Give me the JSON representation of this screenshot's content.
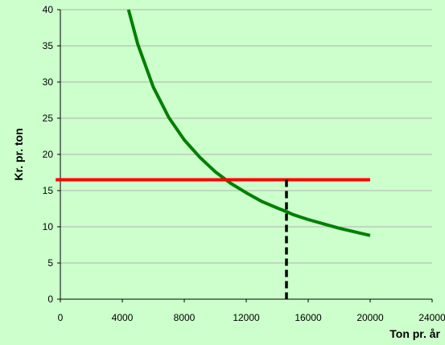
{
  "chart_data": {
    "type": "line",
    "title": "",
    "xlabel": "Ton pr. år",
    "ylabel": "Kr. pr. ton",
    "xlim": [
      0,
      24000
    ],
    "ylim": [
      0,
      40
    ],
    "x_ticks": [
      0,
      4000,
      8000,
      12000,
      16000,
      20000,
      24000
    ],
    "y_ticks": [
      0,
      5,
      10,
      15,
      20,
      25,
      30,
      35,
      40
    ],
    "grid": "horizontal",
    "legend": "none",
    "series": [
      {
        "color": "#008000",
        "x": [
          4400,
          5000,
          6000,
          7000,
          8000,
          9000,
          10000,
          11000,
          12000,
          13000,
          14000,
          14600,
          15000,
          16000,
          17000,
          18000,
          19000,
          20000
        ],
        "y": [
          40.0,
          35.2,
          29.3,
          25.1,
          22.0,
          19.6,
          17.6,
          16.0,
          14.7,
          13.5,
          12.6,
          12.1,
          11.7,
          11.0,
          10.4,
          9.8,
          9.3,
          8.8
        ]
      },
      {
        "color": "#ff0000",
        "x": [
          -300,
          20000
        ],
        "y": [
          16.5,
          16.5
        ]
      },
      {
        "color": "#000000",
        "dashed": true,
        "x": [
          14600,
          14600
        ],
        "y": [
          16.5,
          0
        ]
      }
    ]
  }
}
